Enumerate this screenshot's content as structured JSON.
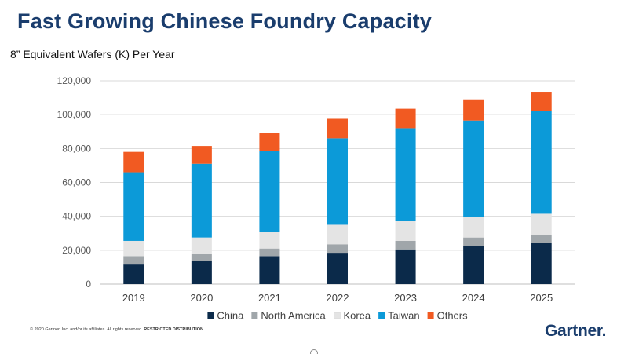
{
  "slide": {
    "title": "Fast Growing Chinese Foundry Capacity",
    "subtitle": "8” Equivalent Wafers (K) Per Year",
    "footer_note": "© 2020 Gartner, Inc. and/or its affiliates. All rights reserved.",
    "footer_note_bold": "RESTRICTED DISTRIBUTION",
    "brand": "Gartner."
  },
  "chart_data": {
    "type": "bar",
    "stacked": true,
    "title": "",
    "xlabel": "",
    "ylabel": "",
    "categories": [
      "2019",
      "2020",
      "2021",
      "2022",
      "2023",
      "2024",
      "2025"
    ],
    "ylim": [
      0,
      120000
    ],
    "yticks": [
      0,
      20000,
      40000,
      60000,
      80000,
      100000,
      120000
    ],
    "ytick_labels": [
      "0",
      "20,000",
      "40,000",
      "60,000",
      "80,000",
      "100,000",
      "120,000"
    ],
    "grid": true,
    "legend_position": "bottom",
    "series": [
      {
        "name": "China",
        "color": "#0b2a4a",
        "values": [
          12000,
          13500,
          16500,
          18500,
          20500,
          22500,
          24500
        ]
      },
      {
        "name": "North America",
        "color": "#a0a6aa",
        "values": [
          4500,
          4500,
          4500,
          5000,
          5000,
          5000,
          4500
        ]
      },
      {
        "name": "Korea",
        "color": "#e4e4e4",
        "values": [
          9000,
          9500,
          10000,
          11500,
          12000,
          12000,
          12500
        ]
      },
      {
        "name": "Taiwan",
        "color": "#0c9ad8",
        "values": [
          40500,
          43500,
          47500,
          51000,
          54500,
          57000,
          60500
        ]
      },
      {
        "name": "Others",
        "color": "#f15a22",
        "values": [
          12000,
          10500,
          10500,
          12000,
          11500,
          12500,
          11500
        ]
      }
    ]
  }
}
